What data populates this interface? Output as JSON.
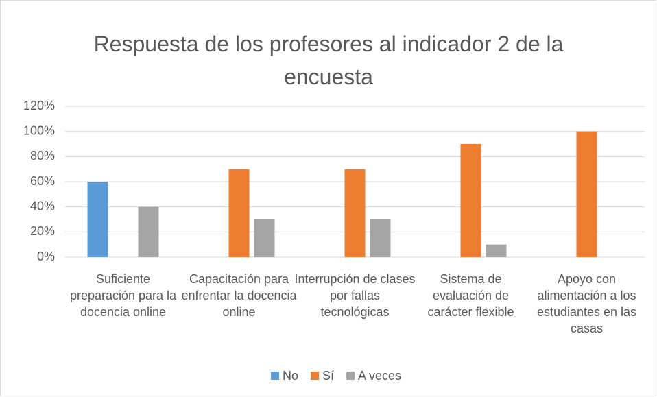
{
  "chart_data": {
    "type": "bar",
    "title": "Respuesta de los profesores al indicador 2 de la encuesta",
    "categories": [
      "Suficiente preparación para la docencia online",
      "Capacitación para enfrentar la docencia online",
      "Interrupción de clases por fallas tecnológicas",
      "Sistema de evaluación de carácter flexible",
      "Apoyo con alimentación  a los estudiantes en las casas"
    ],
    "series": [
      {
        "name": "No",
        "color": "#5b9bd5",
        "values": [
          60,
          0,
          0,
          0,
          0
        ]
      },
      {
        "name": "Sí",
        "color": "#ed7d31",
        "values": [
          0,
          70,
          70,
          90,
          100
        ]
      },
      {
        "name": "A veces",
        "color": "#a5a5a5",
        "values": [
          40,
          30,
          30,
          10,
          0
        ]
      }
    ],
    "ylim": [
      0,
      120
    ],
    "yticks": [
      {
        "value": 0,
        "label": "0%"
      },
      {
        "value": 20,
        "label": "20%"
      },
      {
        "value": 40,
        "label": "40%"
      },
      {
        "value": 60,
        "label": "60%"
      },
      {
        "value": 80,
        "label": "80%"
      },
      {
        "value": 100,
        "label": "100%"
      },
      {
        "value": 120,
        "label": "120%"
      }
    ],
    "grid": true,
    "legend": "bottom"
  }
}
